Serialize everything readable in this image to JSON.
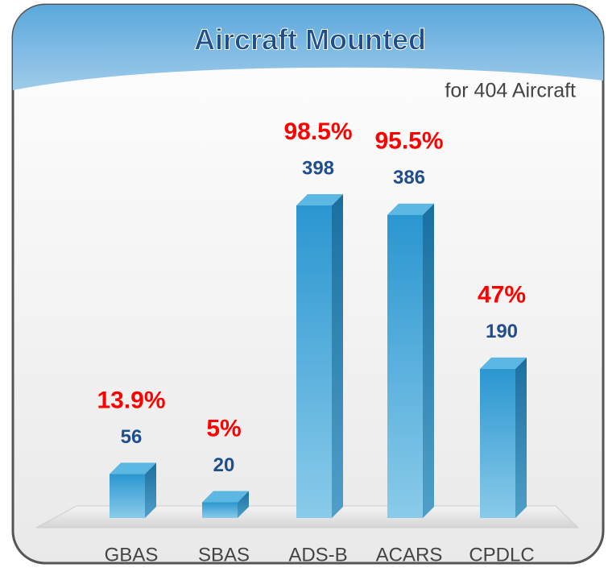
{
  "chart_data": {
    "type": "bar",
    "title": "Aircraft Mounted",
    "subtitle": "for 404 Aircraft",
    "categories": [
      "GBAS",
      "SBAS",
      "ADS-B",
      "ACARS",
      "CPDLC"
    ],
    "values": [
      56,
      20,
      398,
      386,
      190
    ],
    "shares": [
      13.9,
      5,
      98.5,
      95.5,
      47
    ],
    "share_labels": [
      "13.9%",
      "5%",
      "98.5%",
      "95.5%",
      "47%"
    ],
    "color": "#2a96d0",
    "value_label_color": "#1f4e8c",
    "share_label_color": "#ff0000"
  }
}
